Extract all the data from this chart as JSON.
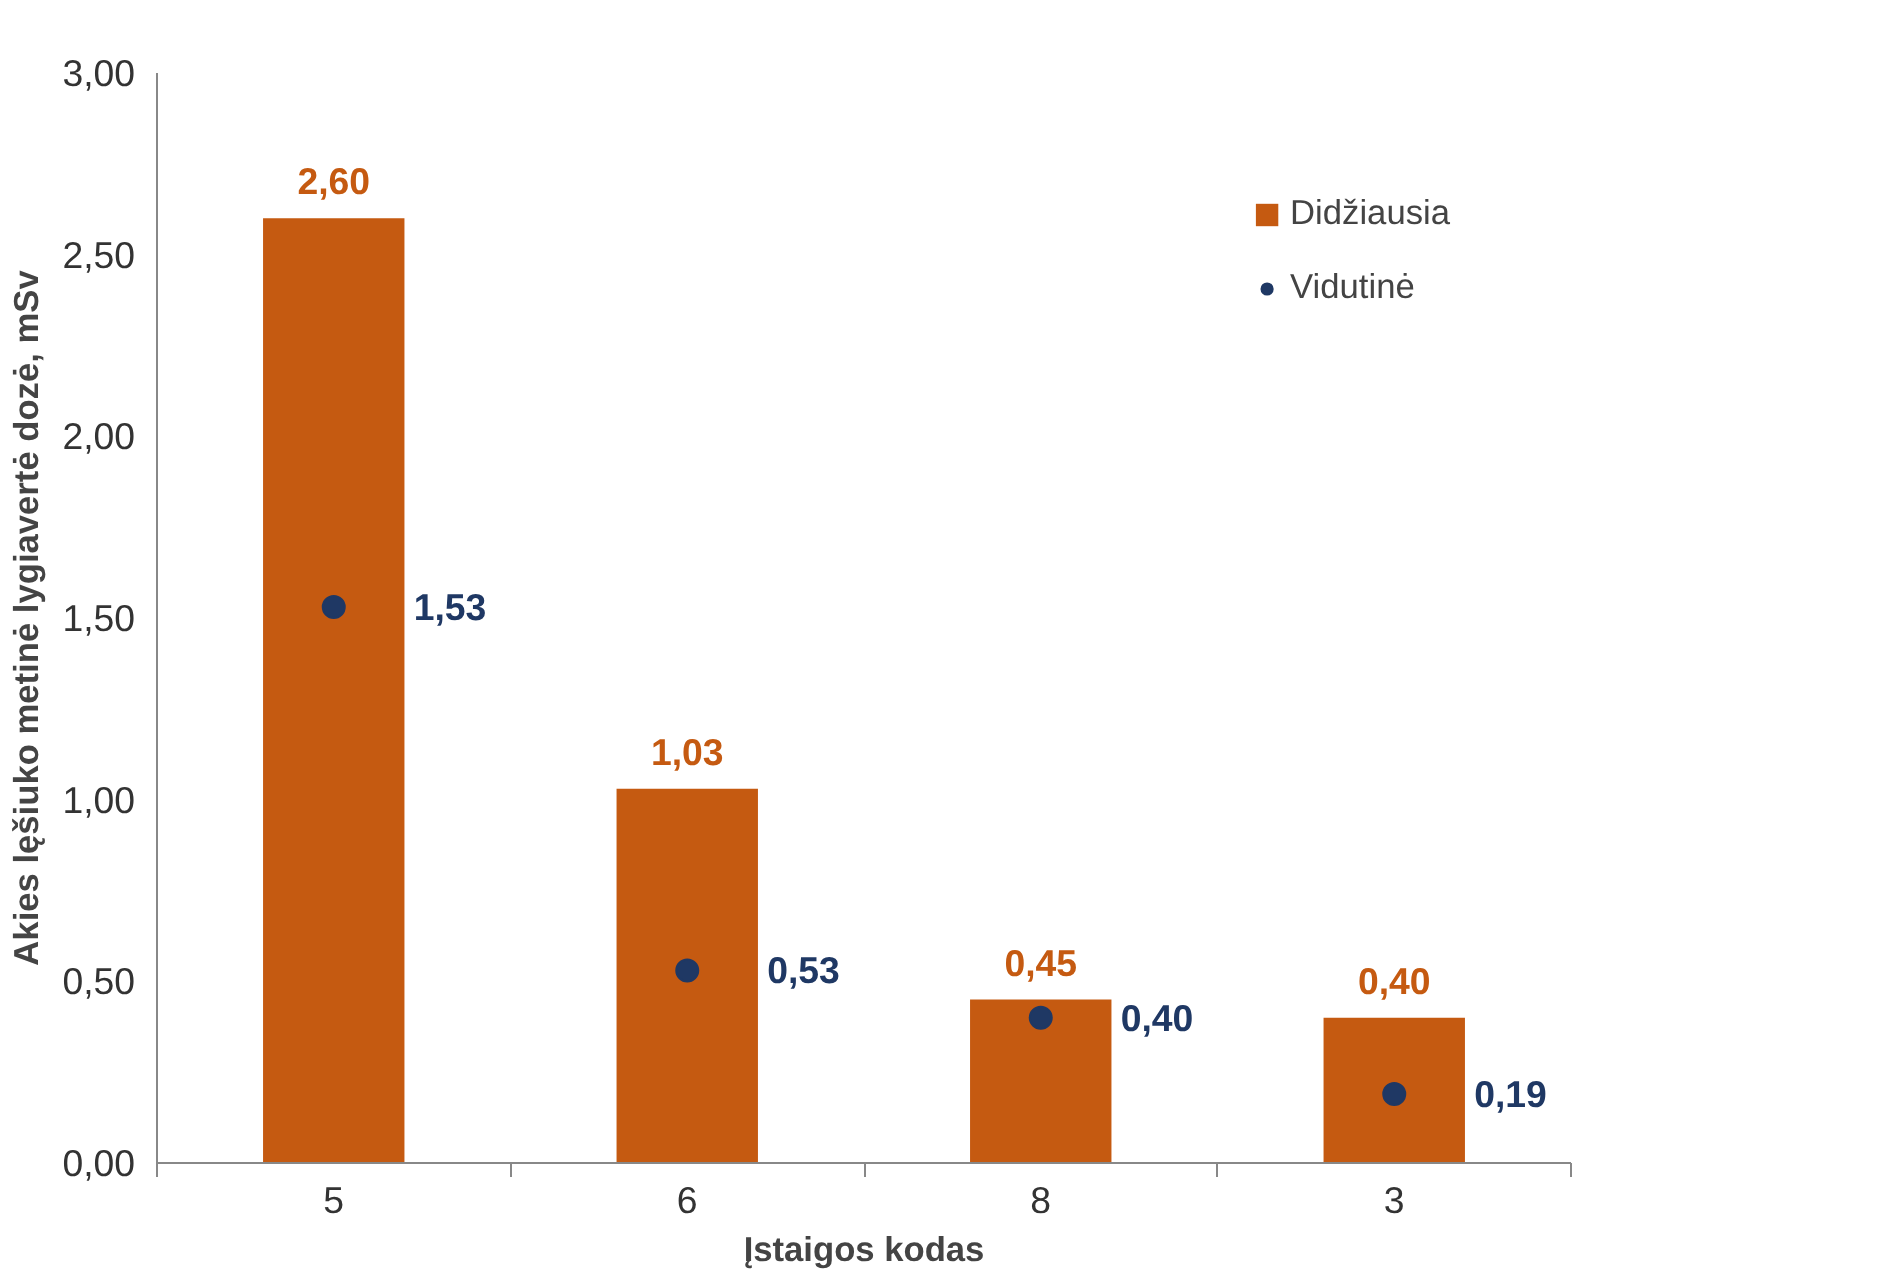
{
  "chart_data": {
    "type": "bar",
    "xlabel": "Įstaigos kodas",
    "ylabel": "Akies lęšiuko metinė lygiavertė dozė, mSv",
    "categories": [
      "5",
      "6",
      "8",
      "3"
    ],
    "series": [
      {
        "name": "Didžiausia",
        "color": "#c55a11",
        "values": [
          2.6,
          1.03,
          0.45,
          0.4
        ],
        "value_labels": [
          "2,60",
          "1,03",
          "0,45",
          "0,40"
        ]
      },
      {
        "name": "Vidutinė",
        "type": "scatter",
        "marker": "circle",
        "color": "#1f3864",
        "x": [
          "5",
          "6",
          "8",
          "3"
        ],
        "values": [
          1.53,
          0.53,
          0.4,
          0.19
        ],
        "value_labels": [
          "1,53",
          "0,53",
          "0,40",
          "0,19"
        ]
      }
    ],
    "ylim": [
      0,
      3
    ],
    "yticks": [
      {
        "value": 0,
        "label": "0,00"
      },
      {
        "value": 0.5,
        "label": "0,50"
      },
      {
        "value": 1,
        "label": "1,00"
      },
      {
        "value": 1.5,
        "label": "1,50"
      },
      {
        "value": 2,
        "label": "2,00"
      },
      {
        "value": 2.5,
        "label": "2,50"
      },
      {
        "value": 3,
        "label": "3,00"
      }
    ],
    "grid": false,
    "legend": "top right"
  }
}
